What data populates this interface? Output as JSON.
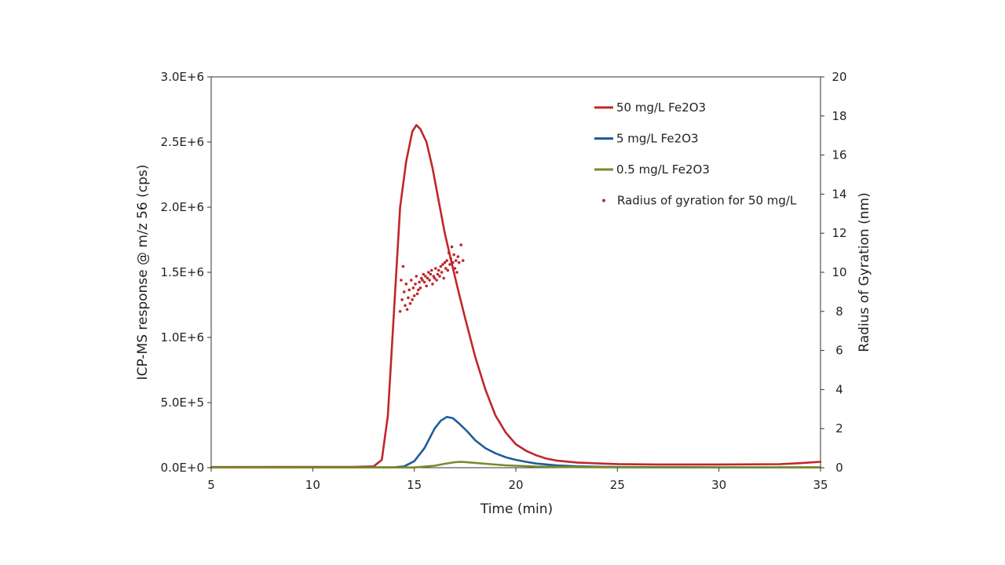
{
  "chart_data": {
    "type": "line",
    "title": "",
    "xlabel": "Time (min)",
    "ylabel": "ICP-MS response @ m/z 56 (cps)",
    "y2label": "Radius of Gyration (nm)",
    "xlim": [
      5,
      35
    ],
    "ylim": [
      0,
      3000000
    ],
    "y2lim": [
      0,
      20
    ],
    "x_ticks": [
      "5",
      "10",
      "15",
      "20",
      "25",
      "30",
      "35"
    ],
    "y_ticks": [
      "0.0E+0",
      "5.0E+5",
      "1.0E+6",
      "1.5E+6",
      "2.0E+6",
      "2.5E+6",
      "3.0E+6"
    ],
    "y2_ticks": [
      "0",
      "2",
      "4",
      "6",
      "8",
      "10",
      "12",
      "14",
      "16",
      "18",
      "20"
    ],
    "grid": false,
    "legend_position": "top-right",
    "series": [
      {
        "name": "50 mg/L Fe2O3",
        "color": "#c0262b",
        "axis": "left",
        "marker": "line",
        "x": [
          5,
          12,
          13,
          13.4,
          13.7,
          14.0,
          14.3,
          14.6,
          14.9,
          15.1,
          15.3,
          15.6,
          15.9,
          16.2,
          16.5,
          16.8,
          17.1,
          17.5,
          18.0,
          18.5,
          19.0,
          19.5,
          20.0,
          20.5,
          21.0,
          21.5,
          22.0,
          23.0,
          24.0,
          25.0,
          27.0,
          30.0,
          33.0,
          34.0,
          35.0
        ],
        "y": [
          5000,
          6000,
          10000,
          60000,
          400000,
          1200000,
          2000000,
          2350000,
          2580000,
          2630000,
          2600000,
          2500000,
          2300000,
          2050000,
          1800000,
          1600000,
          1400000,
          1150000,
          850000,
          600000,
          400000,
          270000,
          180000,
          130000,
          95000,
          70000,
          55000,
          40000,
          33000,
          28000,
          25000,
          25000,
          27000,
          35000,
          45000
        ]
      },
      {
        "name": "5 mg/L Fe2O3",
        "color": "#1f5c99",
        "axis": "left",
        "marker": "line",
        "x": [
          5,
          14.0,
          14.5,
          15.0,
          15.5,
          16.0,
          16.3,
          16.6,
          16.9,
          17.2,
          17.6,
          18.0,
          18.5,
          19.0,
          19.5,
          20.0,
          20.5,
          21.0,
          22.0,
          23.0,
          25.0,
          30.0,
          35.0
        ],
        "y": [
          3000,
          3000,
          10000,
          50000,
          150000,
          300000,
          360000,
          390000,
          380000,
          340000,
          280000,
          210000,
          150000,
          110000,
          80000,
          60000,
          45000,
          32000,
          18000,
          10000,
          5000,
          3000,
          3000
        ],
        "data_labels": []
      },
      {
        "name": "0.5 mg/L Fe2O3",
        "color": "#7a8a2a",
        "axis": "left",
        "marker": "line",
        "x": [
          5,
          15.0,
          16.0,
          16.5,
          17.0,
          17.3,
          17.8,
          18.5,
          19.5,
          21.0,
          23.0,
          25.0,
          35.0
        ],
        "y": [
          2000,
          2000,
          15000,
          30000,
          42000,
          45000,
          40000,
          30000,
          18000,
          9000,
          4000,
          2500,
          2000
        ]
      },
      {
        "name": "Radius of gyration for 50 mg/L",
        "color": "#c0262b",
        "axis": "right",
        "marker": "dot",
        "x": [
          14.3,
          14.35,
          14.4,
          14.45,
          14.5,
          14.55,
          14.6,
          14.65,
          14.7,
          14.75,
          14.8,
          14.85,
          14.9,
          14.95,
          15.0,
          15.05,
          15.1,
          15.15,
          15.2,
          15.25,
          15.3,
          15.35,
          15.4,
          15.45,
          15.5,
          15.55,
          15.6,
          15.65,
          15.7,
          15.75,
          15.8,
          15.85,
          15.9,
          15.95,
          16.0,
          16.05,
          16.1,
          16.15,
          16.2,
          16.25,
          16.3,
          16.35,
          16.4,
          16.45,
          16.5,
          16.55,
          16.6,
          16.65,
          16.7,
          16.75,
          16.8,
          16.85,
          16.9,
          16.95,
          17.0,
          17.05,
          17.1,
          17.15,
          17.2,
          17.3,
          17.4
        ],
        "y": [
          8.0,
          9.6,
          8.6,
          10.3,
          9.0,
          8.3,
          9.4,
          8.1,
          8.7,
          9.1,
          8.4,
          9.6,
          8.6,
          9.2,
          8.8,
          9.4,
          9.8,
          8.9,
          9.1,
          9.5,
          9.2,
          9.7,
          9.6,
          9.9,
          9.5,
          9.8,
          9.3,
          9.7,
          10.0,
          9.6,
          9.9,
          10.1,
          9.4,
          9.8,
          9.7,
          10.2,
          9.6,
          9.9,
          10.1,
          9.8,
          10.3,
          10.0,
          10.4,
          9.7,
          10.5,
          10.2,
          10.6,
          10.1,
          11.0,
          10.4,
          10.7,
          11.3,
          10.5,
          10.9,
          10.2,
          10.6,
          10.0,
          10.8,
          10.5,
          11.4,
          10.6
        ]
      }
    ]
  }
}
